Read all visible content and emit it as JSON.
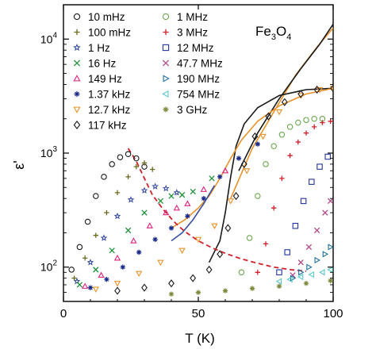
{
  "chart_data": {
    "type": "scatter",
    "title": "",
    "annotation": {
      "prefix": "Fe",
      "sub1": "3",
      "mid": "O",
      "sub2": "4"
    },
    "xlabel": "T (K)",
    "ylabel": "ε'",
    "xlim": [
      0,
      100
    ],
    "ylim": [
      50,
      20000
    ],
    "yscale": "log",
    "grid": false,
    "legend": "top-left, two columns",
    "x_ticks": [
      {
        "value": 0,
        "label": "0"
      },
      {
        "value": 50,
        "label": "50"
      },
      {
        "value": 100,
        "label": "100"
      }
    ],
    "y_ticks": [
      {
        "value": 100,
        "base": "10",
        "exp": "2"
      },
      {
        "value": 1000,
        "base": "10",
        "exp": "3"
      },
      {
        "value": 10000,
        "base": "10",
        "exp": "4"
      }
    ],
    "series": [
      {
        "name": "10 mHz",
        "marker": "circle",
        "color": "#1a1a1a",
        "points": [
          [
            3,
            95
          ],
          [
            6,
            150
          ],
          [
            9,
            250
          ],
          [
            12,
            420
          ],
          [
            15,
            620
          ],
          [
            18,
            800
          ],
          [
            21,
            920
          ],
          [
            24,
            980
          ],
          [
            27,
            900
          ],
          [
            30,
            760
          ]
        ]
      },
      {
        "name": "100 mHz",
        "marker": "plus",
        "color": "#6b6b1f",
        "points": [
          [
            4,
            80
          ],
          [
            8,
            120
          ],
          [
            12,
            190
          ],
          [
            16,
            300
          ],
          [
            20,
            450
          ],
          [
            24,
            620
          ],
          [
            27,
            760
          ],
          [
            30,
            820
          ],
          [
            33,
            720
          ]
        ]
      },
      {
        "name": "1 Hz",
        "marker": "star",
        "color": "#3b4fa0",
        "points": [
          [
            5,
            75
          ],
          [
            10,
            110
          ],
          [
            15,
            180
          ],
          [
            20,
            280
          ],
          [
            25,
            390
          ],
          [
            30,
            470
          ],
          [
            34,
            510
          ],
          [
            38,
            490
          ],
          [
            42,
            450
          ]
        ]
      },
      {
        "name": "16 Hz",
        "marker": "x",
        "color": "#1f8f3a",
        "points": [
          [
            6,
            70
          ],
          [
            12,
            95
          ],
          [
            18,
            140
          ],
          [
            24,
            210
          ],
          [
            30,
            300
          ],
          [
            36,
            380
          ],
          [
            40,
            420
          ],
          [
            44,
            430
          ],
          [
            48,
            460
          ],
          [
            55,
            600
          ]
        ]
      },
      {
        "name": "149 Hz",
        "marker": "triangle-up",
        "color": "#e0207a",
        "points": [
          [
            8,
            68
          ],
          [
            14,
            85
          ],
          [
            20,
            120
          ],
          [
            26,
            170
          ],
          [
            32,
            230
          ],
          [
            38,
            300
          ],
          [
            42,
            330
          ],
          [
            46,
            360
          ],
          [
            52,
            480
          ],
          [
            60,
            700
          ]
        ]
      },
      {
        "name": "1.37 kHz",
        "marker": "asterisk",
        "color": "#1a2a8a",
        "points": [
          [
            10,
            66
          ],
          [
            16,
            78
          ],
          [
            22,
            100
          ],
          [
            28,
            135
          ],
          [
            34,
            175
          ],
          [
            40,
            220
          ],
          [
            46,
            280
          ],
          [
            52,
            400
          ],
          [
            58,
            620
          ],
          [
            65,
            900
          ],
          [
            72,
            1200
          ]
        ]
      },
      {
        "name": "12.7 kHz",
        "marker": "triangle-down",
        "color": "#e8922a",
        "points": [
          [
            12,
            64
          ],
          [
            20,
            72
          ],
          [
            28,
            88
          ],
          [
            36,
            110
          ],
          [
            44,
            140
          ],
          [
            50,
            175
          ],
          [
            56,
            230
          ],
          [
            62,
            380
          ],
          [
            68,
            700
          ],
          [
            74,
            1400
          ],
          [
            80,
            2300
          ],
          [
            88,
            3200
          ],
          [
            95,
            3600
          ],
          [
            100,
            3700
          ]
        ]
      },
      {
        "name": "117 kHz",
        "marker": "diamond",
        "color": "#1a1a1a",
        "points": [
          [
            20,
            62
          ],
          [
            30,
            66
          ],
          [
            40,
            72
          ],
          [
            48,
            80
          ],
          [
            54,
            95
          ],
          [
            58,
            130
          ],
          [
            61,
            220
          ],
          [
            64,
            420
          ],
          [
            67,
            800
          ],
          [
            71,
            1400
          ],
          [
            76,
            2100
          ],
          [
            82,
            2800
          ],
          [
            88,
            3300
          ],
          [
            94,
            3600
          ],
          [
            100,
            3700
          ]
        ]
      },
      {
        "name": "1 MHz",
        "marker": "circle",
        "color": "#6aa84f",
        "points": [
          [
            66,
            90
          ],
          [
            69,
            180
          ],
          [
            72,
            420
          ],
          [
            75,
            800
          ],
          [
            78,
            1150
          ],
          [
            81,
            1450
          ],
          [
            84,
            1700
          ],
          [
            87,
            1850
          ],
          [
            90,
            1950
          ],
          [
            93,
            2000
          ],
          [
            96,
            2000
          ]
        ]
      },
      {
        "name": "3 MHz",
        "marker": "plus",
        "color": "#d0202a",
        "points": [
          [
            72,
            90
          ],
          [
            75,
            160
          ],
          [
            78,
            330
          ],
          [
            81,
            600
          ],
          [
            84,
            950
          ],
          [
            87,
            1250
          ],
          [
            90,
            1500
          ],
          [
            93,
            1700
          ],
          [
            96,
            1850
          ],
          [
            99,
            1900
          ]
        ]
      },
      {
        "name": "12 MHz",
        "marker": "square",
        "color": "#23339a",
        "points": [
          [
            80,
            90
          ],
          [
            83,
            135
          ],
          [
            86,
            230
          ],
          [
            89,
            380
          ],
          [
            92,
            560
          ],
          [
            95,
            760
          ],
          [
            98,
            930
          ]
        ]
      },
      {
        "name": "47.7 MHz",
        "marker": "x",
        "color": "#b04a8a",
        "points": [
          [
            85,
            85
          ],
          [
            88,
            110
          ],
          [
            91,
            150
          ],
          [
            94,
            210
          ],
          [
            97,
            300
          ],
          [
            99,
            380
          ]
        ]
      },
      {
        "name": "190 MHz",
        "marker": "triangle-right",
        "color": "#1f6f9a",
        "points": [
          [
            85,
            80
          ],
          [
            88,
            90
          ],
          [
            91,
            100
          ],
          [
            94,
            115
          ],
          [
            97,
            130
          ],
          [
            99,
            150
          ]
        ]
      },
      {
        "name": "754 MHz",
        "marker": "triangle-left",
        "color": "#5ac8c8",
        "points": [
          [
            80,
            75
          ],
          [
            84,
            78
          ],
          [
            88,
            82
          ],
          [
            92,
            86
          ],
          [
            96,
            90
          ],
          [
            99,
            95
          ]
        ]
      },
      {
        "name": "3 GHz",
        "marker": "asterisk",
        "color": "#7a8a3a",
        "points": [
          [
            40,
            58
          ],
          [
            50,
            60
          ],
          [
            60,
            62
          ],
          [
            70,
            65
          ],
          [
            80,
            68
          ],
          [
            90,
            72
          ],
          [
            99,
            76
          ]
        ]
      }
    ],
    "lines": [
      {
        "color": "#e8922a",
        "points": [
          [
            62,
            400
          ],
          [
            70,
            1100
          ],
          [
            78,
            2300
          ],
          [
            86,
            4800
          ],
          [
            94,
            8500
          ],
          [
            100,
            12500
          ]
        ]
      },
      {
        "color": "#1a1a1a",
        "points": [
          [
            65,
            700
          ],
          [
            72,
            1500
          ],
          [
            80,
            3000
          ],
          [
            88,
            5500
          ],
          [
            95,
            9000
          ],
          [
            100,
            13500
          ]
        ]
      },
      {
        "color": "#1a1a1a",
        "points": [
          [
            54,
            110
          ],
          [
            58,
            170
          ],
          [
            60,
            300
          ],
          [
            62,
            620
          ],
          [
            64,
            1150
          ],
          [
            67,
            1800
          ],
          [
            72,
            2500
          ],
          [
            80,
            3200
          ],
          [
            90,
            3600
          ],
          [
            100,
            3700
          ]
        ]
      },
      {
        "color": "#e8922a",
        "points": [
          [
            40,
            220
          ],
          [
            45,
            260
          ],
          [
            50,
            330
          ],
          [
            54,
            420
          ],
          [
            58,
            600
          ],
          [
            62,
            900
          ],
          [
            66,
            1300
          ],
          [
            72,
            1900
          ],
          [
            80,
            2600
          ],
          [
            90,
            3300
          ],
          [
            100,
            3700
          ]
        ]
      },
      {
        "color": "#3b4fa0",
        "points": [
          [
            40,
            170
          ],
          [
            44,
            200
          ],
          [
            48,
            260
          ],
          [
            52,
            360
          ],
          [
            56,
            520
          ]
        ]
      }
    ],
    "dashed_line": {
      "color": "#d0202a",
      "points": [
        [
          24,
          1100
        ],
        [
          27,
          850
        ],
        [
          30,
          600
        ],
        [
          33,
          430
        ],
        [
          37,
          320
        ],
        [
          41,
          250
        ],
        [
          45,
          205
        ],
        [
          50,
          170
        ],
        [
          55,
          148
        ],
        [
          60,
          132
        ],
        [
          66,
          118
        ],
        [
          72,
          108
        ],
        [
          78,
          100
        ],
        [
          84,
          95
        ],
        [
          90,
          92
        ]
      ]
    }
  }
}
